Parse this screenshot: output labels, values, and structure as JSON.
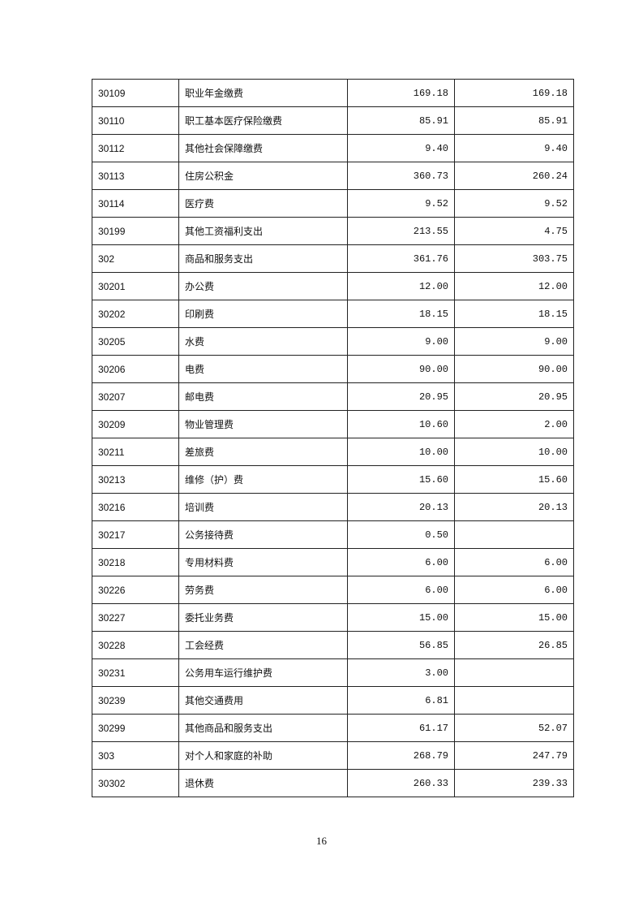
{
  "table": {
    "rows": [
      {
        "code": "30109",
        "name": "职业年金缴费",
        "total": "169.18",
        "basic": "169.18"
      },
      {
        "code": "30110",
        "name": "职工基本医疗保险缴费",
        "total": "85.91",
        "basic": "85.91"
      },
      {
        "code": "30112",
        "name": "其他社会保障缴费",
        "total": "9.40",
        "basic": "9.40"
      },
      {
        "code": "30113",
        "name": "住房公积金",
        "total": "360.73",
        "basic": "260.24"
      },
      {
        "code": "30114",
        "name": "医疗费",
        "total": "9.52",
        "basic": "9.52"
      },
      {
        "code": "30199",
        "name": "其他工资福利支出",
        "total": "213.55",
        "basic": "4.75"
      },
      {
        "code": "302",
        "name": "商品和服务支出",
        "total": "361.76",
        "basic": "303.75"
      },
      {
        "code": "30201",
        "name": "办公费",
        "total": "12.00",
        "basic": "12.00"
      },
      {
        "code": "30202",
        "name": "印刷费",
        "total": "18.15",
        "basic": "18.15"
      },
      {
        "code": "30205",
        "name": "水费",
        "total": "9.00",
        "basic": "9.00"
      },
      {
        "code": "30206",
        "name": "电费",
        "total": "90.00",
        "basic": "90.00"
      },
      {
        "code": "30207",
        "name": "邮电费",
        "total": "20.95",
        "basic": "20.95"
      },
      {
        "code": "30209",
        "name": "物业管理费",
        "total": "10.60",
        "basic": "2.00"
      },
      {
        "code": "30211",
        "name": "差旅费",
        "total": "10.00",
        "basic": "10.00"
      },
      {
        "code": "30213",
        "name": "维修（护）费",
        "total": "15.60",
        "basic": "15.60"
      },
      {
        "code": "30216",
        "name": "培训费",
        "total": "20.13",
        "basic": "20.13"
      },
      {
        "code": "30217",
        "name": "公务接待费",
        "total": "0.50",
        "basic": ""
      },
      {
        "code": "30218",
        "name": "专用材料费",
        "total": "6.00",
        "basic": "6.00"
      },
      {
        "code": "30226",
        "name": "劳务费",
        "total": "6.00",
        "basic": "6.00"
      },
      {
        "code": "30227",
        "name": "委托业务费",
        "total": "15.00",
        "basic": "15.00"
      },
      {
        "code": "30228",
        "name": "工会经费",
        "total": "56.85",
        "basic": "26.85"
      },
      {
        "code": "30231",
        "name": "公务用车运行维护费",
        "total": "3.00",
        "basic": ""
      },
      {
        "code": "30239",
        "name": "其他交通费用",
        "total": "6.81",
        "basic": ""
      },
      {
        "code": "30299",
        "name": "其他商品和服务支出",
        "total": "61.17",
        "basic": "52.07"
      },
      {
        "code": "303",
        "name": "对个人和家庭的补助",
        "total": "268.79",
        "basic": "247.79"
      },
      {
        "code": "30302",
        "name": "退休费",
        "total": "260.33",
        "basic": "239.33"
      }
    ]
  },
  "footer": {
    "page_number": "16"
  }
}
